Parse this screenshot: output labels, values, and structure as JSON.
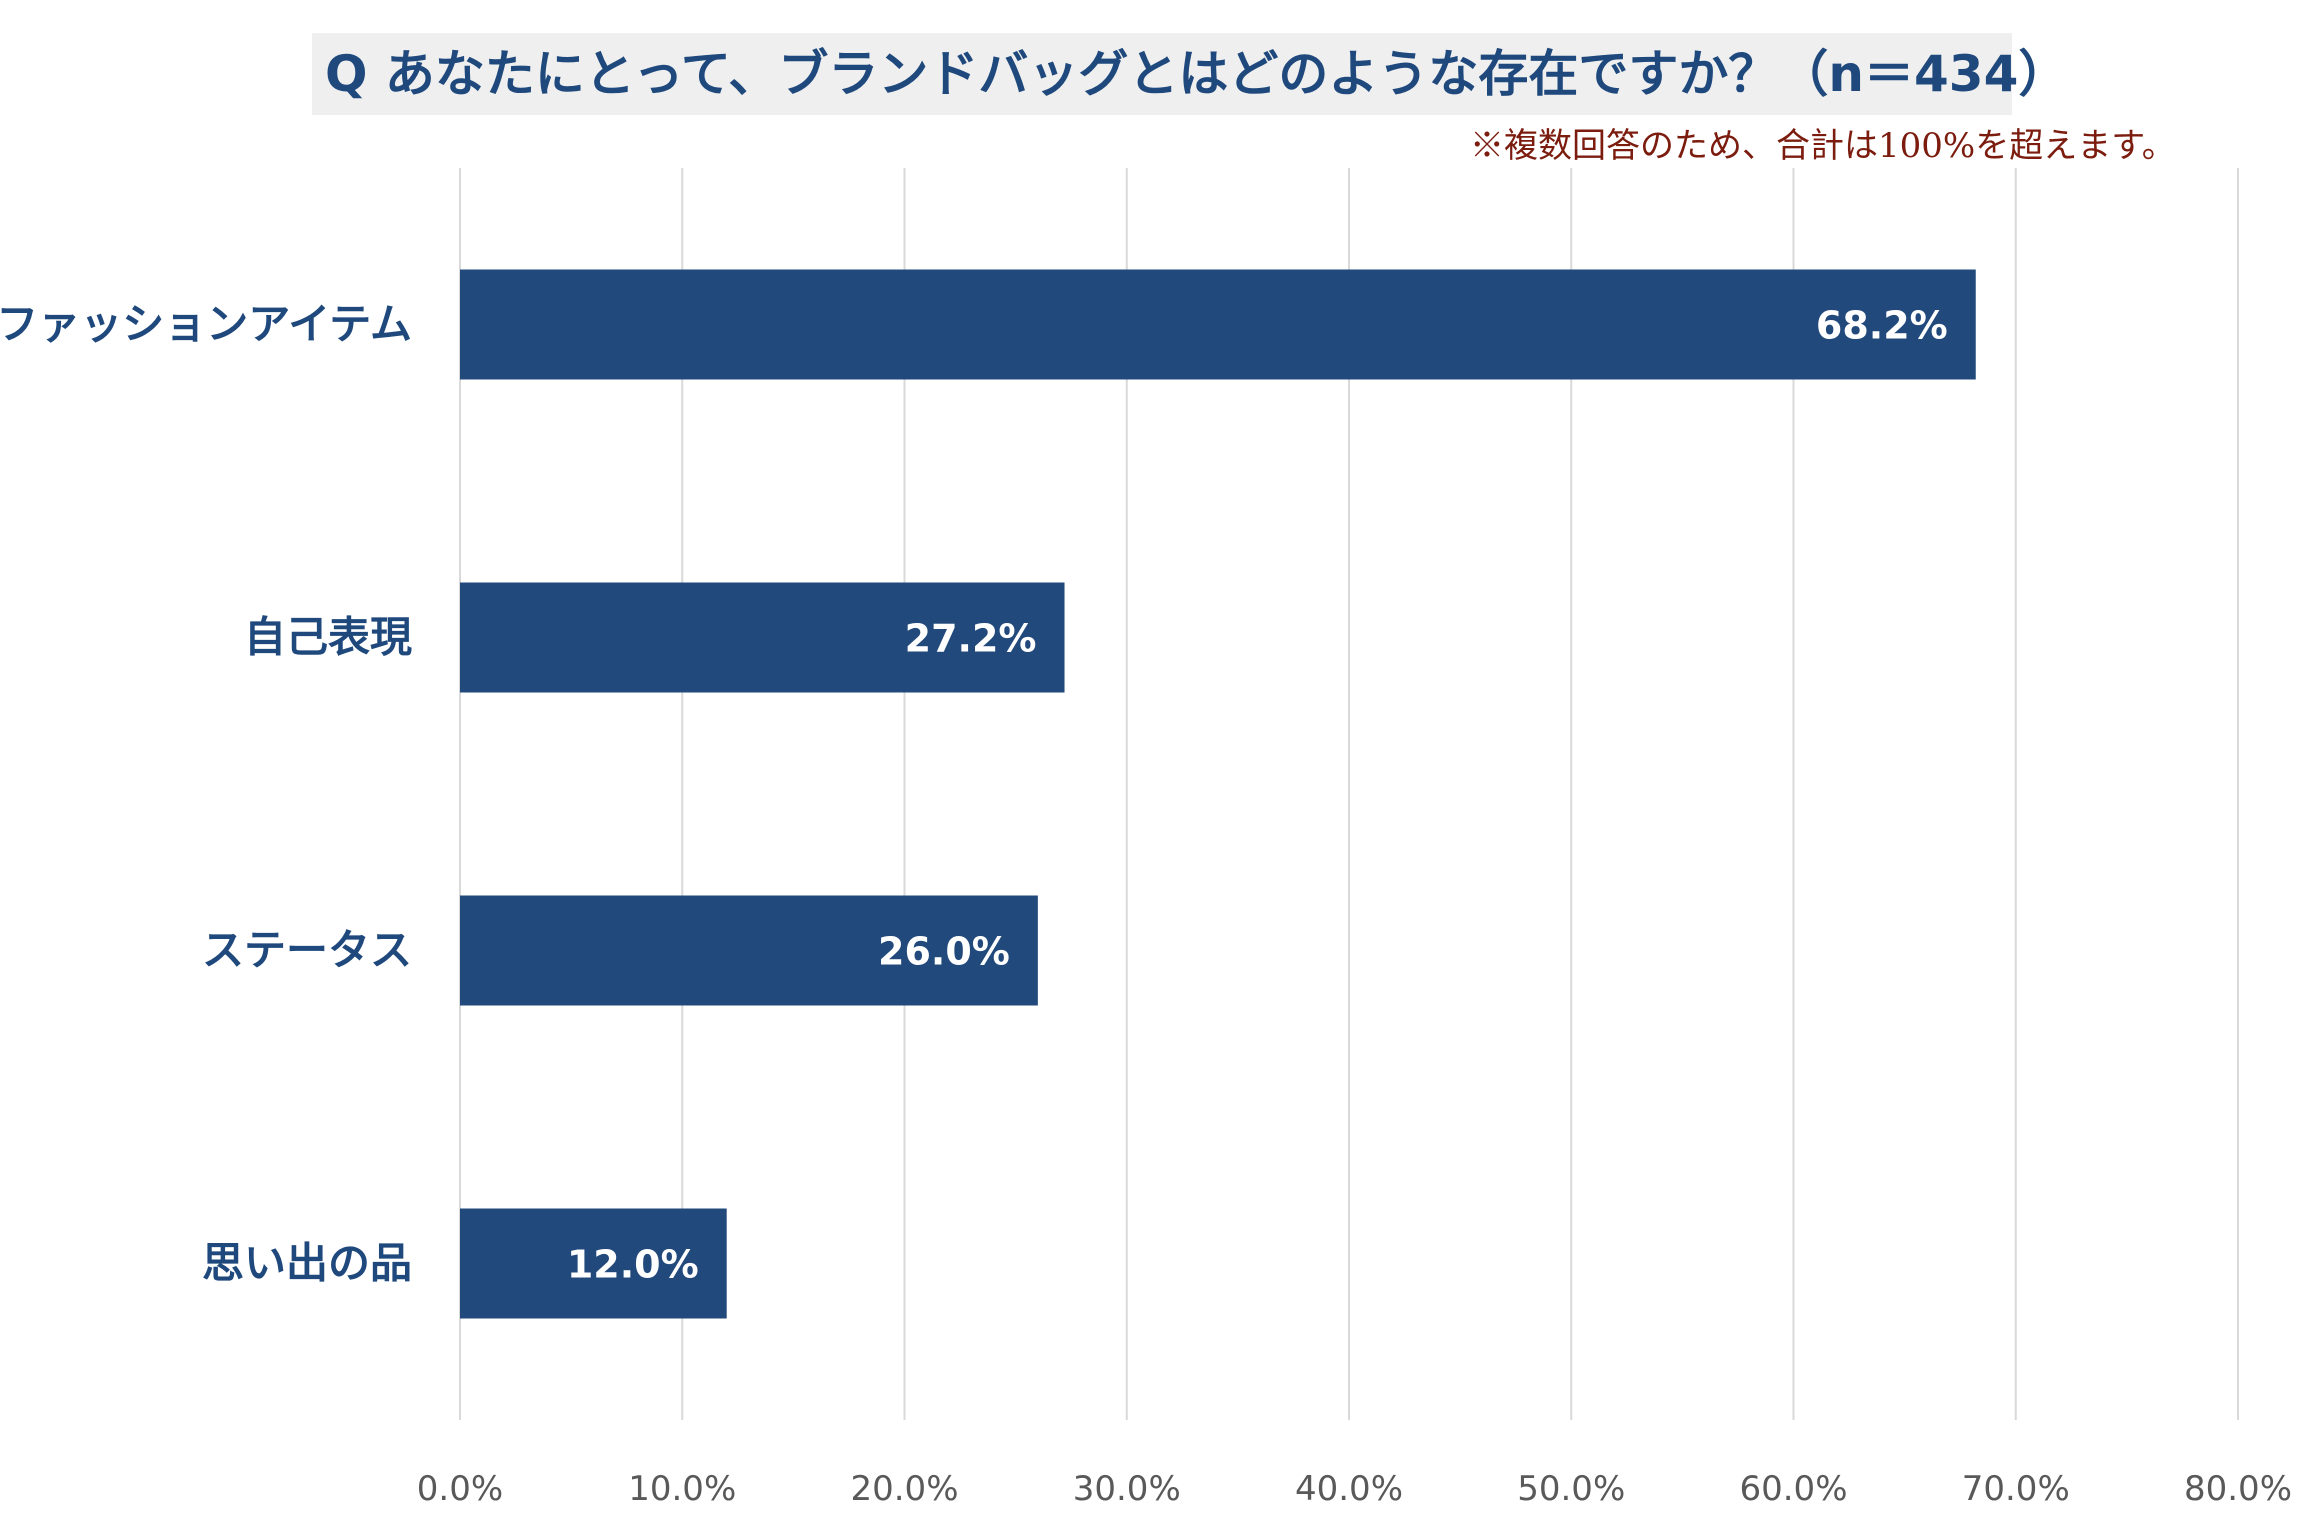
{
  "chart_data": {
    "type": "bar",
    "orientation": "horizontal",
    "title": "Q あなたにとって、ブランドバッグとはどのような存在ですか？（n＝434）",
    "note": "※複数回答のため、合計は100%を超えます。",
    "categories": [
      "ファッションアイテム",
      "自己表現",
      "ステータス",
      "思い出の品"
    ],
    "values": [
      68.2,
      27.2,
      26.0,
      12.0
    ],
    "value_labels": [
      "68.2%",
      "27.2%",
      "26.0%",
      "12.0%"
    ],
    "xlim": [
      0,
      80
    ],
    "x_ticks": [
      0,
      10,
      20,
      30,
      40,
      50,
      60,
      70,
      80
    ],
    "x_tick_labels": [
      "0.0%",
      "10.0%",
      "20.0%",
      "30.0%",
      "40.0%",
      "50.0%",
      "60.0%",
      "70.0%",
      "80.0%"
    ],
    "grid": true,
    "colors": {
      "bar": "#21497b",
      "grid": "#d9d9d9",
      "category_text": "#1f497d",
      "tick_text": "#595959",
      "value_label": "#ffffff",
      "title_bg": "#efefef",
      "title_text": "#1f497d",
      "note_text": "#7b1c0e"
    }
  }
}
